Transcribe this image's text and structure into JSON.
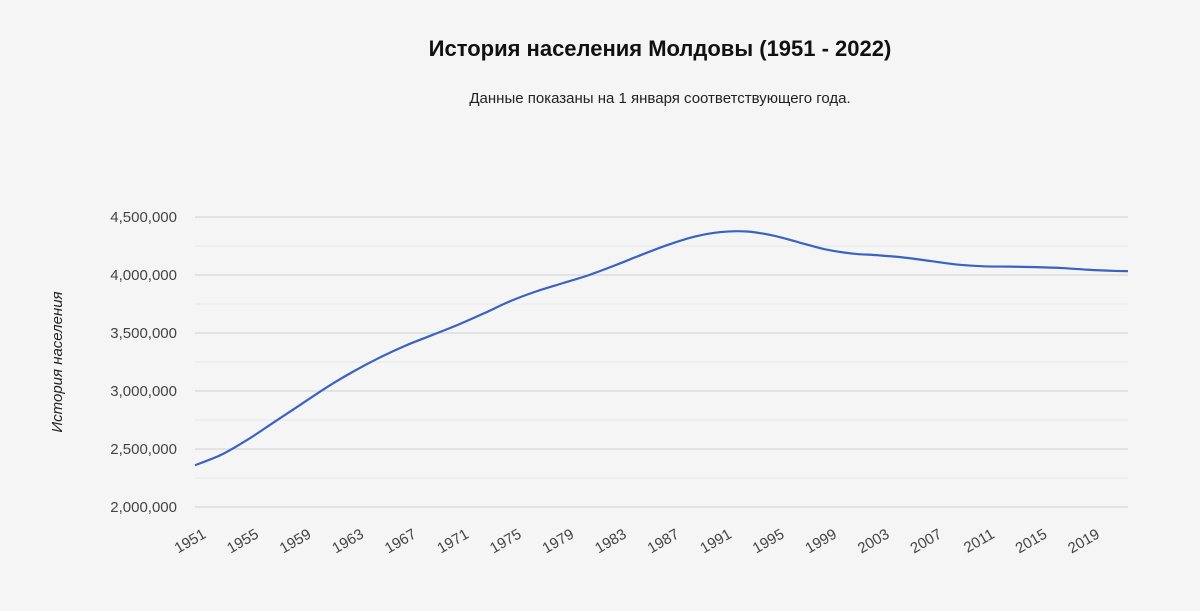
{
  "chart_data": {
    "type": "line",
    "title": "История населения Молдовы (1951 - 2022)",
    "subtitle": "Данные показаны на 1 января соответствующего года.",
    "xlabel": "",
    "ylabel": "История населения",
    "ylim": [
      2000000,
      4500000
    ],
    "y_ticks": [
      2000000,
      2500000,
      3000000,
      3500000,
      4000000,
      4500000
    ],
    "y_tick_labels": [
      "2,000,000",
      "2,500,000",
      "3,000,000",
      "3,500,000",
      "4,000,000",
      "4,500,000"
    ],
    "x_ticks": [
      1951,
      1955,
      1959,
      1963,
      1967,
      1971,
      1975,
      1979,
      1983,
      1987,
      1991,
      1995,
      1999,
      2003,
      2007,
      2011,
      2015,
      2019
    ],
    "x_tick_labels": [
      "1951",
      "1955",
      "1959",
      "1963",
      "1967",
      "1971",
      "1975",
      "1979",
      "1983",
      "1987",
      "1991",
      "1995",
      "1999",
      "2003",
      "2007",
      "2011",
      "2015",
      "2019"
    ],
    "xlim": [
      1951,
      2022
    ],
    "series": [
      {
        "name": "История населения",
        "color": "#3a62c4",
        "x": [
          1951,
          1953,
          1955,
          1957,
          1959,
          1961,
          1963,
          1965,
          1967,
          1969,
          1971,
          1973,
          1975,
          1977,
          1979,
          1981,
          1983,
          1985,
          1987,
          1989,
          1991,
          1993,
          1995,
          1997,
          1999,
          2001,
          2003,
          2005,
          2007,
          2009,
          2011,
          2013,
          2015,
          2017,
          2019,
          2021,
          2022
        ],
        "values": [
          2360000,
          2450000,
          2580000,
          2730000,
          2880000,
          3030000,
          3165000,
          3285000,
          3390000,
          3480000,
          3570000,
          3670000,
          3775000,
          3860000,
          3930000,
          4000000,
          4085000,
          4175000,
          4260000,
          4330000,
          4370000,
          4375000,
          4340000,
          4280000,
          4220000,
          4185000,
          4170000,
          4150000,
          4120000,
          4090000,
          4075000,
          4072000,
          4068000,
          4060000,
          4045000,
          4035000,
          4033000
        ]
      }
    ],
    "grid": true,
    "legend": "none"
  }
}
